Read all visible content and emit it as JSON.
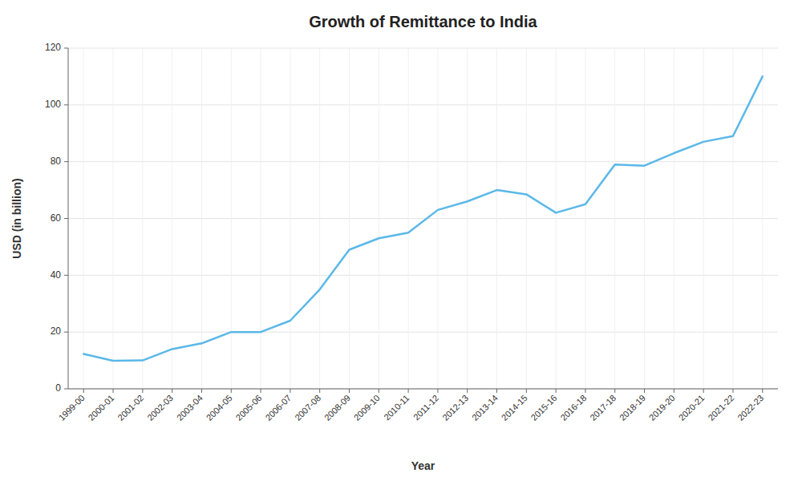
{
  "chart_data": {
    "type": "line",
    "title": "Growth of Remittance to India",
    "xlabel": "Year",
    "ylabel": "USD (in billion)",
    "categories": [
      "1999-00",
      "2000-01",
      "2001-02",
      "2002-03",
      "2003-04",
      "2004-05",
      "2005-06",
      "2006-07",
      "2007-08",
      "2008-09",
      "2009-10",
      "2010-11",
      "2011-12",
      "2012-13",
      "2013-14",
      "2014-15",
      "2015-16",
      "2016-18",
      "2017-18",
      "2018-19",
      "2019-20",
      "2020-21",
      "2021-22",
      "2022-23"
    ],
    "values": [
      12.3,
      9.9,
      10.0,
      14.0,
      16.0,
      20.0,
      20.0,
      24.0,
      35.0,
      49.0,
      53.0,
      55.0,
      63.0,
      66.0,
      70.0,
      68.5,
      62.0,
      65.0,
      79.0,
      78.6,
      83.0,
      87.0,
      89.0,
      110.0
    ],
    "color": "#5bb8e8",
    "ylim": [
      0,
      120
    ],
    "yticks": [
      0,
      20,
      40,
      60,
      80,
      100,
      120
    ],
    "grid": true
  }
}
